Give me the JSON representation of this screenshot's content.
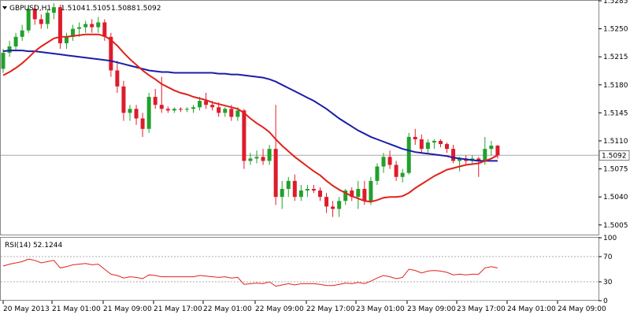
{
  "chart_data": {
    "type": "candlestick",
    "instrument_label": "GBPUSD,H1",
    "ohlc_header": [
      "1.5104",
      "1.5105",
      "1.5088",
      "1.5092"
    ],
    "price_axis": {
      "range": [
        1.4992,
        1.5285
      ],
      "ticks": [
        "1.5285",
        "1.5250",
        "1.5215",
        "1.5180",
        "1.5145",
        "1.5110",
        "1.5075",
        "1.5040",
        "1.5005"
      ]
    },
    "current_price": "1.5092",
    "time_axis_labels": [
      "20 May 2013",
      "21 May 01:00",
      "21 May 09:00",
      "21 May 17:00",
      "22 May 01:00",
      "22 May 09:00",
      "22 May 17:00",
      "23 May 01:00",
      "23 May 09:00",
      "23 May 17:00",
      "24 May 01:00",
      "24 May 09:00"
    ],
    "candles": [
      [
        1.52,
        1.5225,
        1.5195,
        1.522
      ],
      [
        1.522,
        1.5235,
        1.5215,
        1.5228
      ],
      [
        1.5228,
        1.5245,
        1.5222,
        1.524
      ],
      [
        1.524,
        1.5255,
        1.5235,
        1.5248
      ],
      [
        1.5248,
        1.528,
        1.5245,
        1.5275
      ],
      [
        1.5275,
        1.528,
        1.5255,
        1.5262
      ],
      [
        1.5262,
        1.5268,
        1.525,
        1.5256
      ],
      [
        1.5256,
        1.5275,
        1.525,
        1.527
      ],
      [
        1.527,
        1.5282,
        1.5262,
        1.5277
      ],
      [
        1.5277,
        1.528,
        1.5225,
        1.5232
      ],
      [
        1.5232,
        1.5245,
        1.5225,
        1.524
      ],
      [
        1.524,
        1.5255,
        1.5235,
        1.525
      ],
      [
        1.525,
        1.5258,
        1.524,
        1.5252
      ],
      [
        1.5252,
        1.526,
        1.5245,
        1.5256
      ],
      [
        1.5256,
        1.5262,
        1.5245,
        1.5252
      ],
      [
        1.5252,
        1.5265,
        1.5245,
        1.5258
      ],
      [
        1.5258,
        1.5262,
        1.5235,
        1.524
      ],
      [
        1.524,
        1.5245,
        1.519,
        1.5198
      ],
      [
        1.5198,
        1.521,
        1.517,
        1.5178
      ],
      [
        1.5178,
        1.5185,
        1.5135,
        1.5145
      ],
      [
        1.5145,
        1.5155,
        1.5135,
        1.515
      ],
      [
        1.515,
        1.5155,
        1.513,
        1.5138
      ],
      [
        1.5138,
        1.5145,
        1.5115,
        1.5125
      ],
      [
        1.5125,
        1.517,
        1.512,
        1.5165
      ],
      [
        1.5165,
        1.5175,
        1.515,
        1.5155
      ],
      [
        1.5155,
        1.519,
        1.5145,
        1.515
      ],
      [
        1.515,
        1.5153,
        1.5145,
        1.5148
      ],
      [
        1.5148,
        1.5152,
        1.5145,
        1.515
      ],
      [
        1.515,
        1.5152,
        1.5146,
        1.5149
      ],
      [
        1.5149,
        1.5152,
        1.5146,
        1.515
      ],
      [
        1.515,
        1.5155,
        1.5145,
        1.5152
      ],
      [
        1.5152,
        1.5165,
        1.5148,
        1.516
      ],
      [
        1.516,
        1.517,
        1.515,
        1.5155
      ],
      [
        1.5155,
        1.516,
        1.5148,
        1.5152
      ],
      [
        1.5152,
        1.5158,
        1.514,
        1.5145
      ],
      [
        1.5145,
        1.5152,
        1.514,
        1.515
      ],
      [
        1.515,
        1.5155,
        1.5135,
        1.514
      ],
      [
        1.514,
        1.5152,
        1.5135,
        1.5148
      ],
      [
        1.5148,
        1.515,
        1.5075,
        1.5085
      ],
      [
        1.5085,
        1.5095,
        1.508,
        1.5088
      ],
      [
        1.5088,
        1.5098,
        1.5082,
        1.509
      ],
      [
        1.509,
        1.51,
        1.508,
        1.5085
      ],
      [
        1.5085,
        1.5105,
        1.508,
        1.51
      ],
      [
        1.51,
        1.5155,
        1.503,
        1.504
      ],
      [
        1.504,
        1.506,
        1.5025,
        1.505
      ],
      [
        1.505,
        1.5065,
        1.504,
        1.506
      ],
      [
        1.506,
        1.5068,
        1.5035,
        1.504
      ],
      [
        1.504,
        1.5055,
        1.5035,
        1.5048
      ],
      [
        1.5048,
        1.5055,
        1.504,
        1.505
      ],
      [
        1.505,
        1.5055,
        1.5045,
        1.5048
      ],
      [
        1.5048,
        1.5052,
        1.5035,
        1.504
      ],
      [
        1.504,
        1.5045,
        1.502,
        1.5028
      ],
      [
        1.5028,
        1.5035,
        1.5015,
        1.5025
      ],
      [
        1.5025,
        1.504,
        1.5015,
        1.5035
      ],
      [
        1.5035,
        1.505,
        1.503,
        1.5048
      ],
      [
        1.5048,
        1.5052,
        1.5035,
        1.504
      ],
      [
        1.504,
        1.506,
        1.5025,
        1.505
      ],
      [
        1.505,
        1.506,
        1.503,
        1.5035
      ],
      [
        1.5035,
        1.5065,
        1.503,
        1.506
      ],
      [
        1.506,
        1.5082,
        1.5055,
        1.5078
      ],
      [
        1.5078,
        1.5095,
        1.507,
        1.509
      ],
      [
        1.509,
        1.5098,
        1.5075,
        1.508
      ],
      [
        1.508,
        1.5085,
        1.506,
        1.5065
      ],
      [
        1.5065,
        1.5075,
        1.5058,
        1.507
      ],
      [
        1.507,
        1.512,
        1.5068,
        1.5115
      ],
      [
        1.5115,
        1.5125,
        1.5105,
        1.5112
      ],
      [
        1.5112,
        1.5118,
        1.5095,
        1.51
      ],
      [
        1.51,
        1.5112,
        1.5095,
        1.5108
      ],
      [
        1.5108,
        1.5112,
        1.51,
        1.511
      ],
      [
        1.511,
        1.5112,
        1.5102,
        1.5106
      ],
      [
        1.5106,
        1.5108,
        1.5095,
        1.51
      ],
      [
        1.51,
        1.5105,
        1.5082,
        1.5085
      ],
      [
        1.5085,
        1.509,
        1.5072,
        1.5088
      ],
      [
        1.5088,
        1.5092,
        1.508,
        1.5085
      ],
      [
        1.5085,
        1.5092,
        1.508,
        1.5088
      ],
      [
        1.5088,
        1.509,
        1.5065,
        1.5085
      ],
      [
        1.5085,
        1.5115,
        1.508,
        1.51
      ],
      [
        1.51,
        1.511,
        1.5092,
        1.5104
      ],
      [
        1.5104,
        1.5105,
        1.5088,
        1.5092
      ]
    ],
    "ma_red": [
      1.5192,
      1.5196,
      1.5201,
      1.5207,
      1.5214,
      1.5222,
      1.5228,
      1.5233,
      1.5238,
      1.524,
      1.524,
      1.5241,
      1.5242,
      1.5243,
      1.5243,
      1.5243,
      1.5241,
      1.5236,
      1.5229,
      1.522,
      1.5212,
      1.5205,
      1.5198,
      1.5192,
      1.5187,
      1.5181,
      1.5177,
      1.5173,
      1.517,
      1.5168,
      1.5165,
      1.5163,
      1.5161,
      1.5158,
      1.5156,
      1.5154,
      1.5152,
      1.515,
      1.5145,
      1.5138,
      1.5132,
      1.5127,
      1.5121,
      1.5112,
      1.5104,
      1.5097,
      1.509,
      1.5084,
      1.5078,
      1.5072,
      1.5067,
      1.506,
      1.5054,
      1.5049,
      1.5045,
      1.5041,
      1.5038,
      1.5035,
      1.5034,
      1.5036,
      1.5039,
      1.504,
      1.504,
      1.5041,
      1.5045,
      1.5051,
      1.5056,
      1.5061,
      1.5066,
      1.507,
      1.5074,
      1.5076,
      1.5078,
      1.508,
      1.5081,
      1.5082,
      1.5085,
      1.5088,
      1.5092
    ],
    "ma_blue": [
      1.5222,
      1.5223,
      1.5223,
      1.5223,
      1.5222,
      1.5222,
      1.5221,
      1.522,
      1.5219,
      1.5218,
      1.5217,
      1.5216,
      1.5215,
      1.5214,
      1.5213,
      1.5212,
      1.5211,
      1.521,
      1.5208,
      1.5206,
      1.5204,
      1.5202,
      1.52,
      1.5198,
      1.5197,
      1.5196,
      1.5196,
      1.5195,
      1.5195,
      1.5195,
      1.5195,
      1.5195,
      1.5195,
      1.5195,
      1.5194,
      1.5194,
      1.5193,
      1.5193,
      1.5192,
      1.5191,
      1.519,
      1.5189,
      1.5187,
      1.5184,
      1.518,
      1.5176,
      1.5172,
      1.5168,
      1.5164,
      1.516,
      1.5155,
      1.515,
      1.5144,
      1.5138,
      1.5133,
      1.5128,
      1.5123,
      1.5119,
      1.5115,
      1.5112,
      1.5109,
      1.5106,
      1.5103,
      1.51,
      1.5098,
      1.5096,
      1.5095,
      1.5094,
      1.5093,
      1.5092,
      1.5091,
      1.5089,
      1.5088,
      1.5087,
      1.5086,
      1.5085,
      1.5085,
      1.5085,
      1.5085
    ],
    "rsi": {
      "label": "RSI(14) 52.1244",
      "range": [
        0,
        100
      ],
      "ticks": [
        "100",
        "70",
        "30",
        "0"
      ],
      "levels": [
        70,
        30
      ],
      "values": [
        55,
        58,
        60,
        62,
        66,
        64,
        60,
        62,
        64,
        52,
        54,
        57,
        58,
        59,
        57,
        58,
        50,
        42,
        40,
        36,
        38,
        37,
        35,
        41,
        40,
        38,
        38,
        38,
        38,
        38,
        38,
        40,
        39,
        38,
        37,
        38,
        36,
        37,
        26,
        27,
        28,
        27,
        30,
        23,
        25,
        27,
        25,
        27,
        27,
        27,
        26,
        24,
        24,
        26,
        28,
        27,
        29,
        27,
        31,
        36,
        40,
        38,
        35,
        37,
        50,
        48,
        44,
        47,
        48,
        47,
        45,
        41,
        42,
        41,
        42,
        42,
        52,
        54,
        52
      ]
    },
    "colors": {
      "up": "#22a02c",
      "down": "#dd1c2c",
      "ma_red": "#e0221c",
      "ma_blue": "#1c1ca8",
      "grid": "#ababab",
      "price_line": "#a8a8a8"
    }
  }
}
